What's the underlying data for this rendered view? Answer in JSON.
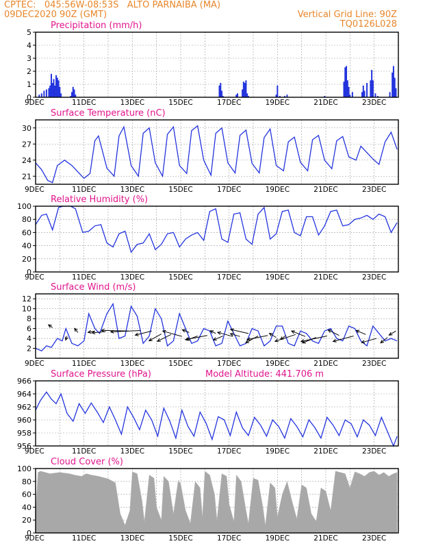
{
  "header": {
    "line1": "CPTEC:   045:56W-08:53S   ALTO PARNAIBA (MA)",
    "line2": "09DEC2020 90Z (GMT)",
    "grid_note": "Vertical Grid Line: 90Z",
    "code": "TQ0126L028"
  },
  "colors": {
    "header": "#e8862a",
    "title": "#e0148c",
    "series": "#2233dd",
    "bar": "#2233dd",
    "cloud": "#a8a8a8"
  },
  "x_tick_labels": [
    "9DEC",
    "11DEC",
    "13DEC",
    "15DEC",
    "17DEC",
    "19DEC",
    "21DEC",
    "23DEC"
  ],
  "panels": [
    {
      "key": "precip",
      "title": "Precipitation (mm/h)",
      "chart_data": {
        "type": "bar",
        "x_unit": "days since 9DEC 00Z",
        "ylim": [
          0,
          5
        ],
        "yticks": [
          0,
          1,
          2,
          3,
          4,
          5
        ],
        "x": [
          0.15,
          0.25,
          0.35,
          0.45,
          0.55,
          0.6,
          0.65,
          0.7,
          0.75,
          0.8,
          0.85,
          0.9,
          0.95,
          1.0,
          1.05,
          1.45,
          1.5,
          1.55,
          1.6,
          1.65,
          7.6,
          7.65,
          7.7,
          7.75,
          8.3,
          8.35,
          8.55,
          8.6,
          8.65,
          8.7,
          8.75,
          8.8,
          9.95,
          10.0,
          10.1,
          10.3,
          10.4,
          11.95,
          12.75,
          12.8,
          12.85,
          12.9,
          12.95,
          13.0,
          13.1,
          13.5,
          13.55,
          13.6,
          13.7,
          13.85,
          13.9,
          13.95,
          14.05,
          14.15,
          14.65,
          14.75,
          14.8,
          14.85,
          14.9
        ],
        "values": [
          0.2,
          0.3,
          0.5,
          0.6,
          0.7,
          0.9,
          1.8,
          1.1,
          1.4,
          0.9,
          1.7,
          1.5,
          1.3,
          0.8,
          0.3,
          0.1,
          0.4,
          0.8,
          0.6,
          0.2,
          0.9,
          1.1,
          0.5,
          0.1,
          0.2,
          0.3,
          0.6,
          1.2,
          1.1,
          1.3,
          0.3,
          0.1,
          0.2,
          0.9,
          0.1,
          0.1,
          0.2,
          0.1,
          1.2,
          2.3,
          2.4,
          1.3,
          0.8,
          0.2,
          0.4,
          0.4,
          0.9,
          0.5,
          1.1,
          1.3,
          2.1,
          1.3,
          0.3,
          0.1,
          0.4,
          1.9,
          2.4,
          1.5,
          0.7
        ]
      }
    },
    {
      "key": "temp",
      "title": "Surface Temperature (nC)",
      "chart_data": {
        "type": "line",
        "x_unit": "days since 9DEC 00Z",
        "ylim": [
          19.5,
          31.5
        ],
        "yticks": [
          21,
          24,
          27,
          30
        ],
        "x": [
          0,
          0.25,
          0.5,
          0.7,
          0.9,
          1.2,
          1.5,
          2.0,
          2.25,
          2.45,
          2.6,
          2.95,
          3.25,
          3.45,
          3.65,
          3.95,
          4.25,
          4.45,
          4.7,
          4.95,
          5.25,
          5.45,
          5.7,
          5.95,
          6.25,
          6.45,
          6.7,
          6.95,
          7.25,
          7.45,
          7.7,
          7.95,
          8.25,
          8.45,
          8.7,
          8.95,
          9.25,
          9.45,
          9.7,
          9.95,
          10.25,
          10.45,
          10.7,
          10.95,
          11.25,
          11.45,
          11.7,
          11.95,
          12.25,
          12.45,
          12.7,
          12.95,
          13.25,
          13.45,
          13.7,
          13.95,
          14.2,
          14.45,
          14.7,
          14.95
        ],
        "values": [
          23.5,
          22.2,
          20.2,
          19.8,
          23.0,
          24.0,
          23.0,
          20.6,
          21.5,
          27.6,
          28.5,
          22.5,
          21.0,
          28.5,
          30.2,
          23.0,
          21.0,
          29.0,
          30.0,
          23.5,
          21.0,
          28.8,
          30.2,
          23.0,
          21.5,
          29.5,
          30.4,
          24.0,
          21.2,
          29.0,
          30.0,
          23.5,
          21.6,
          28.6,
          29.6,
          23.4,
          21.6,
          28.2,
          29.8,
          23.0,
          22.0,
          27.4,
          28.3,
          23.6,
          22.0,
          27.8,
          28.6,
          24.0,
          22.4,
          27.6,
          28.4,
          24.6,
          24.0,
          26.6,
          25.4,
          24.2,
          23.2,
          27.4,
          29.2,
          26.0
        ]
      }
    },
    {
      "key": "rh",
      "title": "Relative Humidity (%)",
      "chart_data": {
        "type": "line",
        "x_unit": "days since 9DEC 00Z",
        "ylim": [
          0,
          100
        ],
        "yticks": [
          0,
          20,
          40,
          60,
          80,
          100
        ],
        "x": [
          0,
          0.25,
          0.45,
          0.7,
          0.95,
          1.15,
          1.45,
          1.65,
          1.95,
          2.2,
          2.45,
          2.7,
          2.95,
          3.2,
          3.45,
          3.7,
          3.95,
          4.2,
          4.45,
          4.7,
          4.95,
          5.2,
          5.45,
          5.7,
          5.95,
          6.2,
          6.45,
          6.7,
          6.95,
          7.2,
          7.45,
          7.7,
          7.95,
          8.2,
          8.45,
          8.7,
          8.95,
          9.2,
          9.45,
          9.7,
          9.95,
          10.2,
          10.45,
          10.7,
          10.95,
          11.2,
          11.45,
          11.7,
          11.95,
          12.2,
          12.45,
          12.7,
          12.95,
          13.2,
          13.45,
          13.7,
          13.95,
          14.2,
          14.45,
          14.7,
          14.95
        ],
        "values": [
          72,
          86,
          88,
          64,
          98,
          100,
          100,
          96,
          60,
          62,
          70,
          72,
          44,
          38,
          58,
          62,
          30,
          42,
          44,
          58,
          34,
          42,
          58,
          60,
          38,
          50,
          56,
          60,
          48,
          92,
          96,
          50,
          45,
          88,
          90,
          50,
          42,
          88,
          98,
          50,
          58,
          92,
          94,
          60,
          55,
          84,
          84,
          56,
          70,
          92,
          94,
          70,
          72,
          80,
          82,
          86,
          80,
          88,
          84,
          60,
          75
        ]
      }
    },
    {
      "key": "wind",
      "title": "Surface Wind (m/s)",
      "chart_data": {
        "type": "line",
        "x_unit": "days since 9DEC 00Z",
        "ylim": [
          0,
          13
        ],
        "yticks": [
          2,
          4,
          6,
          8,
          10,
          12
        ],
        "x": [
          0,
          0.25,
          0.45,
          0.65,
          0.9,
          1.1,
          1.25,
          1.5,
          1.75,
          2.0,
          2.2,
          2.45,
          2.65,
          2.95,
          3.2,
          3.45,
          3.7,
          3.95,
          4.2,
          4.45,
          4.7,
          4.95,
          5.2,
          5.45,
          5.7,
          5.95,
          6.2,
          6.45,
          6.7,
          6.95,
          7.2,
          7.45,
          7.7,
          7.95,
          8.2,
          8.45,
          8.7,
          8.95,
          9.2,
          9.45,
          9.7,
          9.95,
          10.2,
          10.45,
          10.7,
          10.95,
          11.2,
          11.45,
          11.7,
          11.95,
          12.2,
          12.45,
          12.7,
          12.95,
          13.2,
          13.45,
          13.7,
          13.95,
          14.2,
          14.45,
          14.7,
          14.95
        ],
        "values": [
          2.0,
          1.5,
          2.5,
          2.2,
          4.0,
          3.5,
          6.0,
          3.0,
          2.5,
          3.5,
          9.0,
          6.0,
          5.0,
          9.0,
          11.0,
          4.0,
          4.5,
          10.5,
          8.5,
          3.0,
          4.5,
          10.0,
          8.0,
          2.5,
          3.5,
          9.0,
          6.0,
          3.0,
          3.5,
          6.0,
          5.5,
          2.5,
          3.0,
          7.5,
          5.0,
          2.5,
          3.0,
          6.0,
          5.5,
          2.5,
          3.5,
          6.5,
          6.5,
          3.0,
          2.5,
          5.5,
          5.0,
          3.5,
          3.0,
          5.5,
          6.0,
          4.0,
          3.5,
          6.5,
          6.0,
          3.5,
          2.5,
          6.5,
          5.0,
          3.5,
          4.0,
          3.5
        ]
      }
    },
    {
      "key": "pres",
      "title": "Surface Pressure (hPa)",
      "extra": "Model Altitude: 441.706 m",
      "chart_data": {
        "type": "line",
        "x_unit": "days since 9DEC 00Z",
        "ylim": [
          956,
          966
        ],
        "yticks": [
          956,
          958,
          960,
          962,
          964,
          966
        ],
        "x": [
          0,
          0.2,
          0.45,
          0.65,
          0.85,
          1.05,
          1.3,
          1.55,
          1.8,
          2.05,
          2.3,
          2.55,
          2.8,
          3.05,
          3.3,
          3.55,
          3.8,
          4.05,
          4.3,
          4.55,
          4.8,
          5.05,
          5.3,
          5.55,
          5.8,
          6.05,
          6.3,
          6.55,
          6.8,
          7.05,
          7.3,
          7.55,
          7.8,
          8.05,
          8.3,
          8.55,
          8.8,
          9.05,
          9.3,
          9.55,
          9.8,
          10.05,
          10.3,
          10.55,
          10.8,
          11.05,
          11.3,
          11.55,
          11.8,
          12.05,
          12.3,
          12.55,
          12.8,
          13.05,
          13.3,
          13.55,
          13.8,
          14.05,
          14.3,
          14.55,
          14.8,
          14.95
        ],
        "values": [
          961.5,
          963.0,
          964.3,
          963.2,
          962.5,
          964.0,
          961.0,
          959.8,
          962.5,
          961.0,
          962.6,
          961.2,
          959.6,
          962.0,
          960.0,
          957.8,
          962.0,
          960.4,
          958.5,
          961.5,
          960.0,
          957.5,
          961.8,
          959.8,
          957.2,
          961.5,
          959.0,
          957.5,
          961.2,
          959.5,
          957.0,
          960.5,
          960.0,
          957.6,
          961.2,
          958.8,
          957.6,
          960.4,
          959.2,
          957.5,
          960.0,
          959.0,
          957.2,
          960.2,
          959.0,
          957.4,
          960.0,
          958.8,
          957.2,
          960.4,
          959.2,
          957.6,
          960.0,
          959.4,
          957.4,
          960.0,
          959.2,
          957.6,
          960.4,
          958.2,
          956.0,
          957.5
        ]
      }
    },
    {
      "key": "cloud",
      "title": "Cloud Cover (%)",
      "chart_data": {
        "type": "area",
        "x_unit": "days since 9DEC 00Z",
        "ylim": [
          0,
          100
        ],
        "yticks": [
          0,
          20,
          40,
          60,
          80,
          100
        ],
        "x": [
          0,
          0.1,
          0.2,
          0.6,
          1.0,
          1.4,
          1.6,
          1.9,
          2.1,
          2.3,
          2.6,
          3.0,
          3.3,
          3.5,
          3.7,
          3.9,
          4.0,
          4.2,
          4.4,
          4.5,
          4.7,
          4.9,
          5.0,
          5.2,
          5.3,
          5.5,
          5.7,
          5.9,
          6.0,
          6.2,
          6.4,
          6.6,
          6.8,
          6.9,
          7.0,
          7.2,
          7.4,
          7.5,
          7.7,
          7.9,
          8.0,
          8.2,
          8.3,
          8.5,
          8.7,
          8.8,
          9.0,
          9.2,
          9.4,
          9.5,
          9.7,
          9.9,
          10.0,
          10.2,
          10.4,
          10.6,
          10.8,
          11.0,
          11.2,
          11.4,
          11.6,
          11.8,
          12.0,
          12.2,
          12.4,
          12.6,
          12.8,
          13.0,
          13.2,
          13.4,
          13.6,
          13.8,
          14.0,
          14.2,
          14.4,
          14.6,
          14.8,
          14.95
        ],
        "values": [
          30,
          94,
          96,
          92,
          94,
          92,
          90,
          88,
          92,
          90,
          88,
          84,
          78,
          30,
          12,
          35,
          95,
          92,
          50,
          18,
          90,
          85,
          40,
          20,
          88,
          80,
          30,
          82,
          76,
          35,
          15,
          80,
          70,
          25,
          96,
          90,
          60,
          20,
          92,
          88,
          45,
          18,
          90,
          80,
          35,
          15,
          85,
          82,
          40,
          12,
          78,
          70,
          25,
          60,
          80,
          50,
          22,
          75,
          70,
          30,
          18,
          70,
          65,
          35,
          96,
          94,
          92,
          70,
          95,
          92,
          88,
          94,
          96,
          90,
          94,
          88,
          92,
          94
        ]
      }
    }
  ],
  "wind_vectors": {
    "x": [
      0.7,
      1.3,
      1.75,
      2.45,
      2.9,
      3.85,
      4.35,
      4.8,
      5.2,
      5.6,
      6.05,
      6.35,
      6.7,
      7.1,
      7.45,
      7.75,
      8.15,
      8.45,
      8.8,
      9.2,
      9.6,
      9.95,
      10.35,
      10.75,
      11.15,
      11.6,
      12.05,
      12.55,
      13.15,
      13.65,
      14.1,
      14.55,
      14.9
    ],
    "y": [
      6.2,
      4.5,
      5.2,
      5.5,
      5.4,
      5.5,
      5.6,
      5.5,
      4.9,
      4.8,
      4.4,
      5.2,
      4.5,
      4.6,
      5.0,
      4.5,
      4.4,
      4.4,
      5.0,
      4.5,
      4.6,
      4.2,
      4.6,
      4.8,
      4.4,
      4.2,
      4.5,
      4.6,
      4.5,
      4.8,
      4.0,
      4.2,
      5.5
    ],
    "u": [
      -0.6,
      -0.2,
      -0.5,
      -1.0,
      -2.0,
      -4.0,
      -4.4,
      -2.4,
      -1.8,
      -2.0,
      -2.8,
      -1.0,
      -1.6,
      -3.2,
      -0.8,
      -1.4,
      -2.2,
      -1.4,
      -2.6,
      -1.8,
      -3.0,
      -1.0,
      -0.8,
      -3.0,
      -2.0,
      -2.0,
      -3.8,
      -1.6,
      -3.0,
      -1.4,
      -2.2,
      -1.0,
      -1.0
    ],
    "v": [
      0.4,
      -0.6,
      0.6,
      -0.2,
      -0.2,
      0.1,
      -0.2,
      -0.6,
      -1.0,
      -1.0,
      0.8,
      0.4,
      -0.6,
      -0.6,
      0.4,
      -0.6,
      0.6,
      0.4,
      0.6,
      -1.0,
      -0.6,
      0.6,
      -0.6,
      -1.0,
      0.8,
      -0.8,
      -0.8,
      0.8,
      -0.8,
      0.6,
      -0.6,
      -0.8,
      -0.6
    ]
  }
}
